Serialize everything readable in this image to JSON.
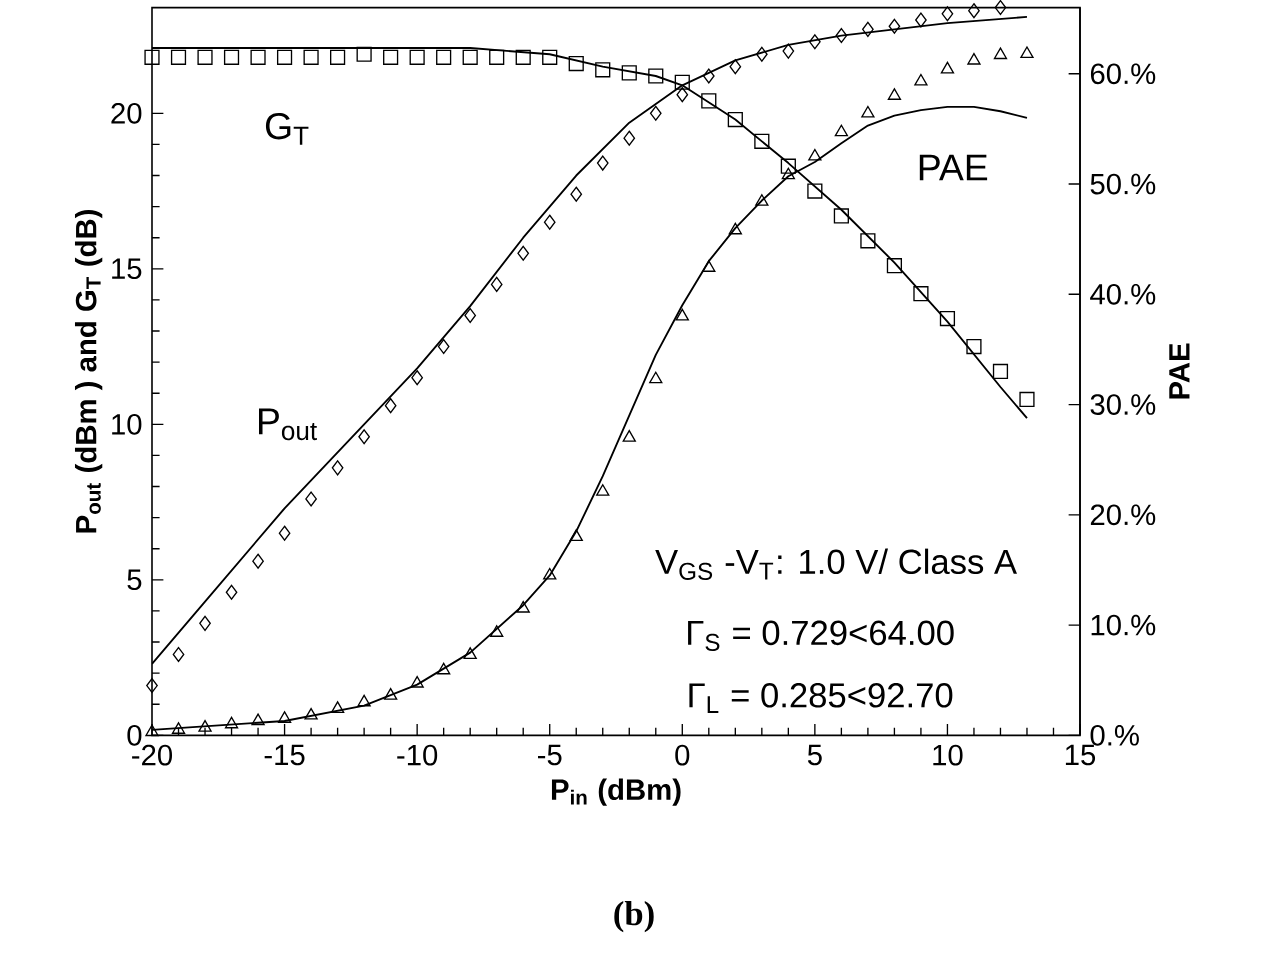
{
  "chart_data": {
    "type": "scatter",
    "xlabel": "P$_{in}$ (dBm)",
    "ylabel": "P$_{out}$ (dBm ) and G$_{T}$ (dB)",
    "y2label": "PAE",
    "xlim": [
      -20,
      15
    ],
    "xticks": [
      -20,
      -15,
      -10,
      -5,
      0,
      5,
      10,
      15
    ],
    "ylim": [
      0,
      23.4
    ],
    "yticks": [
      0,
      5,
      10,
      15,
      20
    ],
    "y2lim": [
      0,
      66
    ],
    "y2ticks": [
      {
        "value": 0,
        "label": "0.%"
      },
      {
        "value": 10,
        "label": "10.%"
      },
      {
        "value": 20,
        "label": "20.%"
      },
      {
        "value": 30,
        "label": "30.%"
      },
      {
        "value": 40,
        "label": "40.%"
      },
      {
        "value": 50,
        "label": "50.%"
      },
      {
        "value": 60,
        "label": "60.%"
      }
    ],
    "x": [
      -20,
      -19,
      -18,
      -17,
      -16,
      -15,
      -14,
      -13,
      -12,
      -11,
      -10,
      -9,
      -8,
      -7,
      -6,
      -5,
      -4,
      -3,
      -2,
      -1,
      0,
      1,
      2,
      3,
      4,
      5,
      6,
      7,
      8,
      9,
      10,
      11,
      12,
      13
    ],
    "series": [
      {
        "name": "G$_{T}$",
        "marker": "square",
        "color": "#000000",
        "values": [
          21.8,
          21.8,
          21.8,
          21.8,
          21.8,
          21.8,
          21.8,
          21.8,
          21.9,
          21.8,
          21.8,
          21.8,
          21.8,
          21.8,
          21.8,
          21.8,
          21.6,
          21.4,
          21.3,
          21.2,
          21.0,
          20.4,
          19.8,
          19.1,
          18.3,
          17.5,
          16.7,
          15.9,
          15.1,
          14.2,
          13.4,
          12.5,
          11.7,
          10.8
        ]
      },
      {
        "type": "line",
        "line_style": "solid",
        "color": "#000000",
        "x": [
          -20,
          -8,
          -5,
          -3,
          -1,
          0,
          2,
          4,
          6,
          8,
          10,
          12,
          13
        ],
        "values": [
          22.1,
          22.1,
          21.9,
          21.5,
          21.2,
          20.9,
          19.8,
          18.4,
          16.9,
          15.2,
          13.3,
          11.2,
          10.2
        ]
      },
      {
        "name": "P$_{out}$",
        "marker": "diamond",
        "color": "#000000",
        "values": [
          1.6,
          2.6,
          3.6,
          4.6,
          5.6,
          6.5,
          7.6,
          8.6,
          9.6,
          10.6,
          11.5,
          12.5,
          13.5,
          14.5,
          15.5,
          16.5,
          17.4,
          18.4,
          19.2,
          20.0,
          20.6,
          21.2,
          21.5,
          21.9,
          22.0,
          22.3,
          22.5,
          22.7,
          22.8,
          23.0,
          23.2,
          23.3,
          23.4,
          null
        ]
      },
      {
        "type": "line",
        "line_style": "solid",
        "color": "#000000",
        "x": [
          -20,
          -18,
          -15,
          -12,
          -10,
          -8,
          -6,
          -4,
          -2,
          0,
          2,
          4,
          6,
          8,
          10,
          13
        ],
        "values": [
          2.3,
          4.3,
          7.3,
          10.0,
          11.8,
          13.8,
          16.0,
          18.0,
          19.7,
          20.9,
          21.7,
          22.2,
          22.5,
          22.7,
          22.9,
          23.1
        ]
      },
      {
        "name": "PAE",
        "marker": "triangle",
        "axis": "y2",
        "color": "#000000",
        "values": [
          0.3,
          0.5,
          0.7,
          1.0,
          1.3,
          1.5,
          1.8,
          2.4,
          3.0,
          3.6,
          4.7,
          5.9,
          7.3,
          9.3,
          11.5,
          14.5,
          18.0,
          22.1,
          27.0,
          32.3,
          38.0,
          42.4,
          45.8,
          48.4,
          50.8,
          52.5,
          54.7,
          56.4,
          58.0,
          59.3,
          60.4,
          61.2,
          61.7,
          61.8
        ]
      },
      {
        "type": "line",
        "line_style": "solid",
        "axis": "y2",
        "color": "#000000",
        "x": [
          -20,
          -15,
          -12,
          -10,
          -8,
          -6,
          -5,
          -4,
          -3,
          -2,
          -1,
          0,
          1,
          2,
          3,
          4,
          5,
          6,
          7,
          8,
          9,
          10,
          11,
          12,
          13
        ],
        "values": [
          0.5,
          1.3,
          2.7,
          4.6,
          7.5,
          11.8,
          14.5,
          18.5,
          23.5,
          29.0,
          34.5,
          39.0,
          43.0,
          46.0,
          48.5,
          50.7,
          52.0,
          53.7,
          55.3,
          56.2,
          56.7,
          57.0,
          57.0,
          56.6,
          56.0
        ]
      }
    ],
    "annotations": [
      "V$_{GS}$ -V$_{T}$: 1.0 V/ Class A",
      "Γ$_{S}$ = 0.729<64.00",
      "Γ$_{L}$ = 0.285<92.70",
      "(b)"
    ],
    "grid": false
  }
}
